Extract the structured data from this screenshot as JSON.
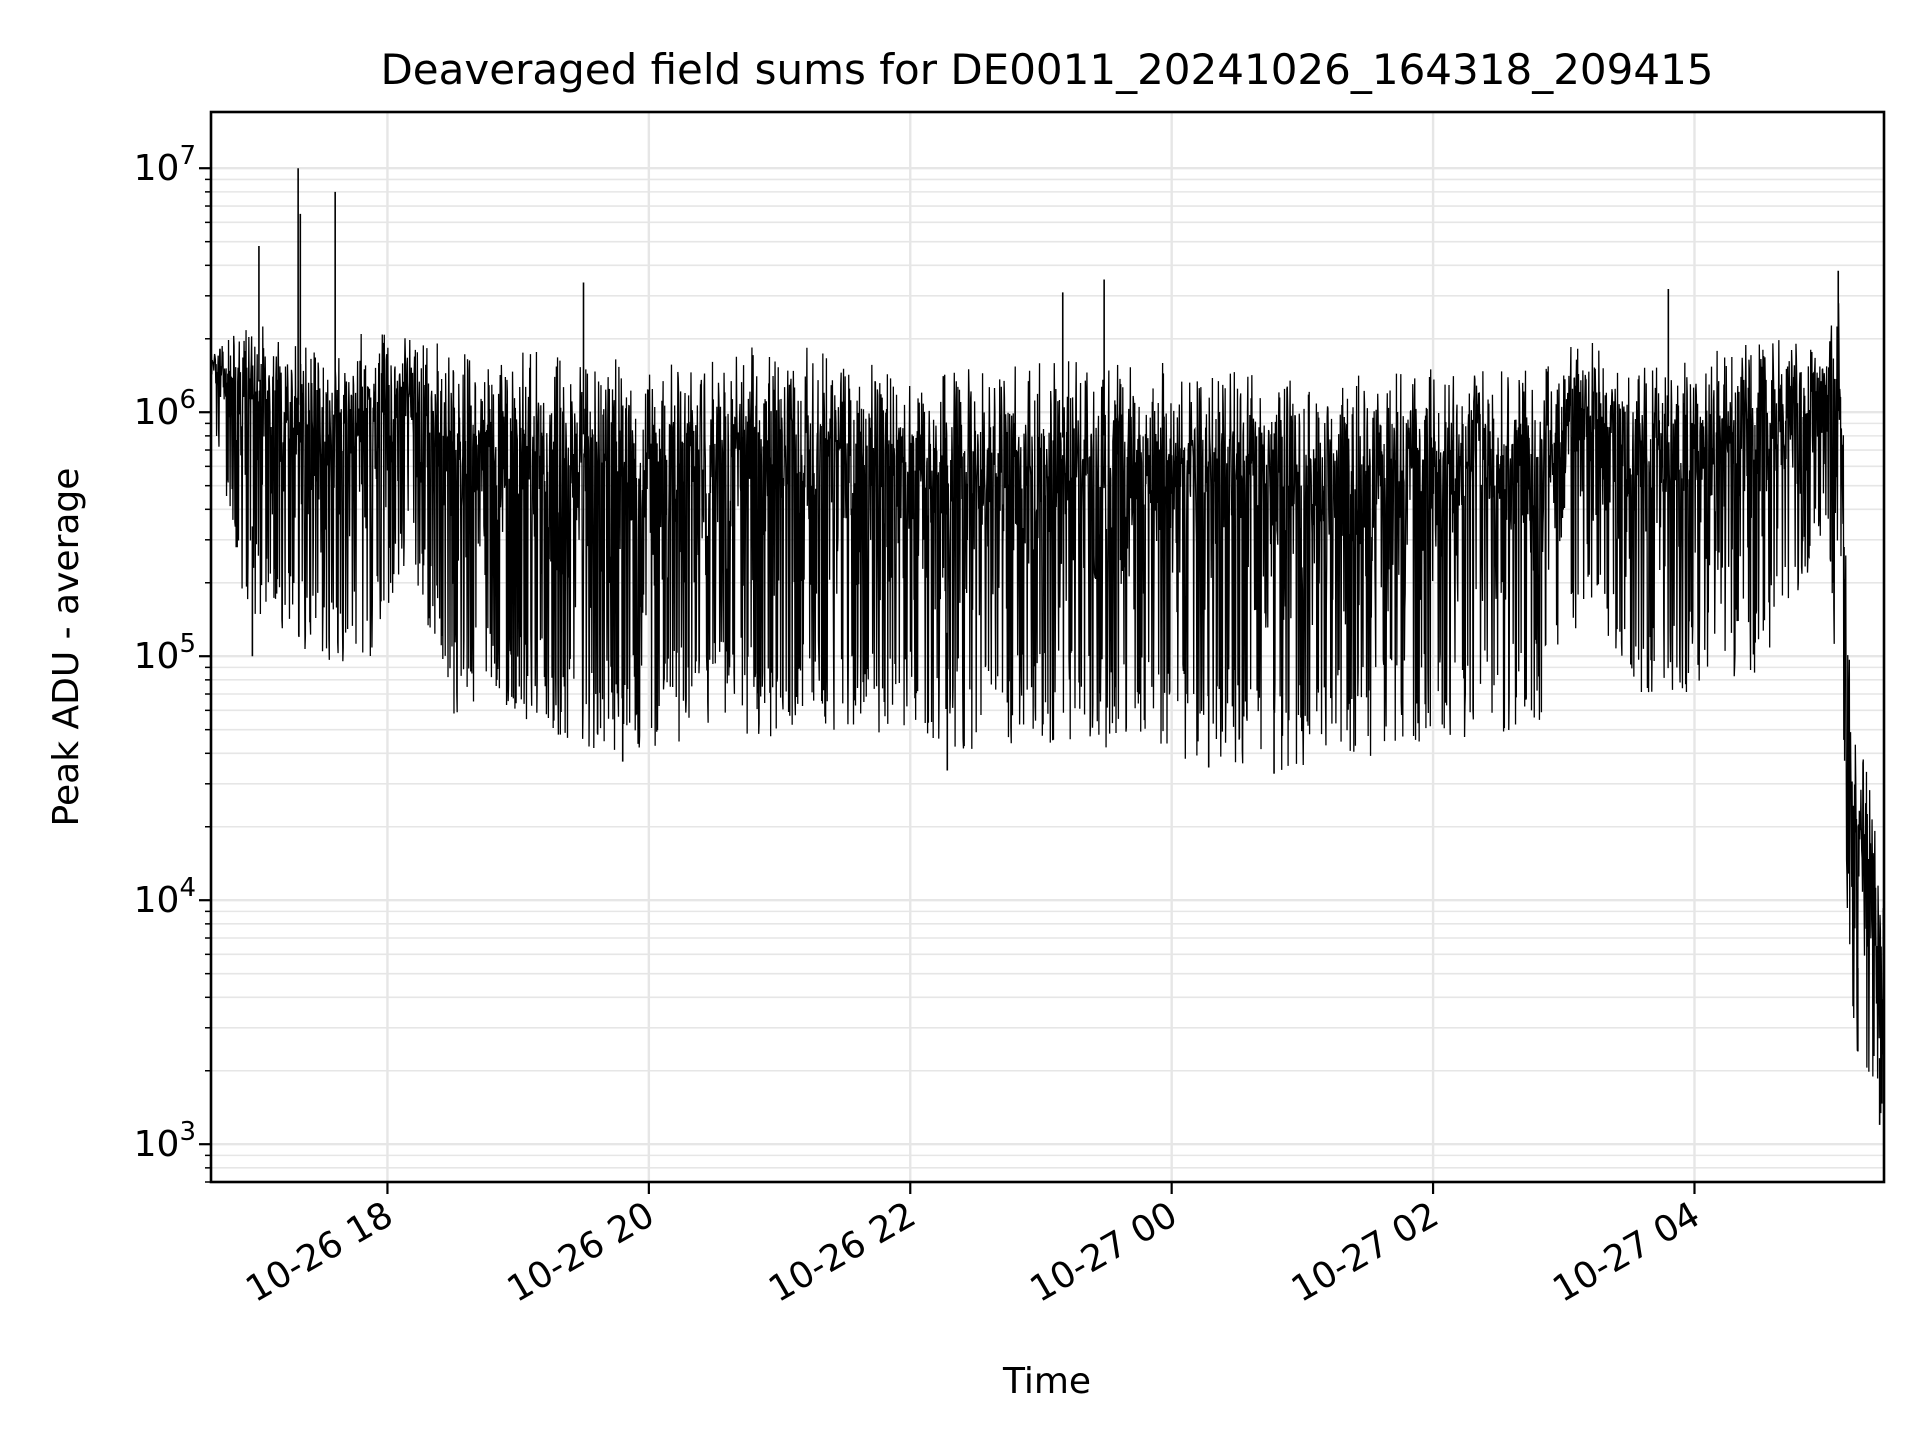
{
  "chart_data": {
    "type": "line",
    "title": "Deaveraged field sums for DE0011_20241026_164318_209415",
    "xlabel": "Time",
    "ylabel": "Peak ADU - average",
    "yscale": "log",
    "ylim": [
      700,
      17000000
    ],
    "xlim": [
      "2024-10-26 16:39",
      "2024-10-27 05:27"
    ],
    "grid": true,
    "line_color": "#000000",
    "x_ticks": [
      {
        "value": "2024-10-26 18:00",
        "label": "10-26 18"
      },
      {
        "value": "2024-10-26 20:00",
        "label": "10-26 20"
      },
      {
        "value": "2024-10-26 22:00",
        "label": "10-26 22"
      },
      {
        "value": "2024-10-27 00:00",
        "label": "10-27 00"
      },
      {
        "value": "2024-10-27 02:00",
        "label": "10-27 02"
      },
      {
        "value": "2024-10-27 04:00",
        "label": "10-27 04"
      }
    ],
    "y_ticks": [
      {
        "value": 1000,
        "base": "10",
        "exp": "3"
      },
      {
        "value": 10000,
        "base": "10",
        "exp": "4"
      },
      {
        "value": 100000,
        "base": "10",
        "exp": "5"
      },
      {
        "value": 1000000,
        "base": "10",
        "exp": "6"
      },
      {
        "value": 10000000,
        "base": "10",
        "exp": "7"
      }
    ],
    "series": [
      {
        "color": "#000000",
        "envelope": [
          {
            "t": "2024-10-26 16:39",
            "lo": 1000000,
            "hi": 1800000
          },
          {
            "t": "2024-10-26 16:55",
            "lo": 150000,
            "hi": 2600000
          },
          {
            "t": "2024-10-26 17:10",
            "lo": 130000,
            "hi": 2000000
          },
          {
            "t": "2024-10-26 17:30",
            "lo": 90000,
            "hi": 1800000
          },
          {
            "t": "2024-10-26 17:50",
            "lo": 85000,
            "hi": 2200000
          },
          {
            "t": "2024-10-26 18:10",
            "lo": 250000,
            "hi": 2000000
          },
          {
            "t": "2024-10-26 18:30",
            "lo": 58000,
            "hi": 1900000
          },
          {
            "t": "2024-10-26 19:00",
            "lo": 55000,
            "hi": 1800000
          },
          {
            "t": "2024-10-26 19:30",
            "lo": 42000,
            "hi": 1700000
          },
          {
            "t": "2024-10-26 20:00",
            "lo": 40000,
            "hi": 1600000
          },
          {
            "t": "2024-10-26 20:30",
            "lo": 50000,
            "hi": 1800000
          },
          {
            "t": "2024-10-26 21:00",
            "lo": 45000,
            "hi": 2000000
          },
          {
            "t": "2024-10-26 21:30",
            "lo": 50000,
            "hi": 1700000
          },
          {
            "t": "2024-10-26 22:00",
            "lo": 46000,
            "hi": 1600000
          },
          {
            "t": "2024-10-26 22:30",
            "lo": 40000,
            "hi": 1500000
          },
          {
            "t": "2024-10-26 23:00",
            "lo": 44000,
            "hi": 1600000
          },
          {
            "t": "2024-10-26 23:30",
            "lo": 40000,
            "hi": 1700000
          },
          {
            "t": "2024-10-27 00:00",
            "lo": 38000,
            "hi": 1600000
          },
          {
            "t": "2024-10-27 00:30",
            "lo": 36000,
            "hi": 1500000
          },
          {
            "t": "2024-10-27 01:00",
            "lo": 33000,
            "hi": 1500000
          },
          {
            "t": "2024-10-27 01:30",
            "lo": 38000,
            "hi": 1500000
          },
          {
            "t": "2024-10-27 02:00",
            "lo": 45000,
            "hi": 1500000
          },
          {
            "t": "2024-10-27 02:30",
            "lo": 48000,
            "hi": 1500000
          },
          {
            "t": "2024-10-27 02:50",
            "lo": 55000,
            "hi": 1500000
          },
          {
            "t": "2024-10-27 03:10",
            "lo": 160000,
            "hi": 2200000
          },
          {
            "t": "2024-10-27 03:30",
            "lo": 65000,
            "hi": 1600000
          },
          {
            "t": "2024-10-27 04:00",
            "lo": 70000,
            "hi": 1700000
          },
          {
            "t": "2024-10-27 04:30",
            "lo": 80000,
            "hi": 2000000
          },
          {
            "t": "2024-10-27 05:00",
            "lo": 300000,
            "hi": 2000000
          },
          {
            "t": "2024-10-27 05:07",
            "lo": 50000,
            "hi": 3700000
          },
          {
            "t": "2024-10-27 05:12",
            "lo": 3000,
            "hi": 50000
          },
          {
            "t": "2024-10-27 05:20",
            "lo": 1200,
            "hi": 35000
          },
          {
            "t": "2024-10-27 05:27",
            "lo": 1000,
            "hi": 9000
          }
        ],
        "spikes": [
          {
            "t": "2024-10-26 16:58",
            "y": 100000
          },
          {
            "t": "2024-10-26 17:01",
            "y": 4800000
          },
          {
            "t": "2024-10-26 17:19",
            "y": 10000000
          },
          {
            "t": "2024-10-26 17:20",
            "y": 6500000
          },
          {
            "t": "2024-10-26 17:36",
            "y": 8000000
          },
          {
            "t": "2024-10-26 19:30",
            "y": 3400000
          },
          {
            "t": "2024-10-26 19:48",
            "y": 37000
          },
          {
            "t": "2024-10-26 22:17",
            "y": 34000
          },
          {
            "t": "2024-10-26 23:10",
            "y": 3100000
          },
          {
            "t": "2024-10-26 23:29",
            "y": 3500000
          },
          {
            "t": "2024-10-27 00:17",
            "y": 35000
          },
          {
            "t": "2024-10-27 00:47",
            "y": 33000
          },
          {
            "t": "2024-10-27 03:48",
            "y": 3200000
          },
          {
            "t": "2024-10-27 05:06",
            "y": 3800000
          },
          {
            "t": "2024-10-27 05:15",
            "y": 2400
          },
          {
            "t": "2024-10-27 05:25",
            "y": 1200
          },
          {
            "t": "2024-10-27 05:27",
            "y": 1050
          }
        ]
      }
    ]
  }
}
